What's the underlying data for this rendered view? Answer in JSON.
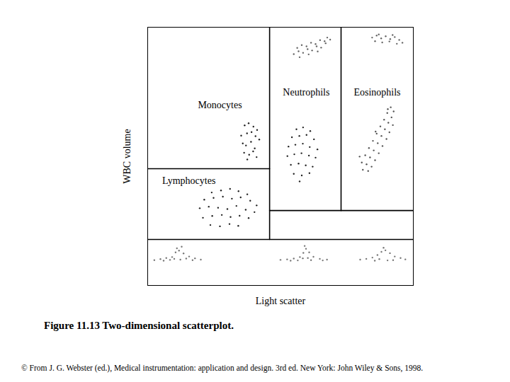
{
  "chart_data": {
    "type": "scatter",
    "title": "Figure 11.13 Two-dimensional scatterplot.",
    "caption": "© From J. G. Webster (ed.), Medical instrumentation: application and design. 3rd ed. New York: John Wiley & Sons, 1998.",
    "x_label": "Light scatter",
    "y_label": "WBC volume",
    "xlim": [
      0,
      100
    ],
    "ylim": [
      0,
      100
    ],
    "xticks": [],
    "yticks": [],
    "tick_labels": false,
    "grid": false,
    "marker": "dot",
    "series": [
      {
        "color": "#222222",
        "x": [
          36.5,
          38.0,
          39.8,
          41.2,
          35.2,
          37.4,
          39.1,
          40.6,
          42.0,
          35.8,
          37.0,
          38.9,
          40.3,
          36.3,
          38.2,
          39.7,
          37.5,
          41.0
        ],
        "values": [
          62.0,
          62.8,
          61.5,
          60.2,
          58.0,
          58.9,
          59.4,
          57.8,
          56.5,
          55.0,
          54.2,
          55.6,
          53.1,
          51.4,
          50.6,
          51.9,
          48.8,
          49.7
        ]
      },
      {
        "color": "#222222",
        "x": [
          56.0,
          58.5,
          61.2,
          54.3,
          57.1,
          59.8,
          62.6,
          53.0,
          55.6,
          58.4,
          61.0,
          63.9,
          52.6,
          55.2,
          57.9,
          60.7,
          63.2,
          53.9,
          56.8,
          59.5,
          62.1,
          55.0,
          58.0,
          60.9,
          57.2
        ],
        "values": [
          60.5,
          61.2,
          59.8,
          57.4,
          57.9,
          58.3,
          56.6,
          53.8,
          54.5,
          54.9,
          53.6,
          52.7,
          50.1,
          50.8,
          51.2,
          50.3,
          49.5,
          46.7,
          47.2,
          46.5,
          46.0,
          43.2,
          42.6,
          43.5,
          40.3
        ]
      },
      {
        "color": "#222222",
        "x": [
          24.1,
          27.6,
          31.0,
          34.2,
          37.5,
          21.3,
          24.8,
          28.3,
          31.7,
          35.0,
          38.6,
          41.0,
          19.6,
          23.0,
          26.5,
          30.0,
          33.4,
          36.9,
          40.2,
          20.8,
          24.3,
          27.9,
          31.2,
          34.6,
          38.0,
          23.6,
          27.2,
          30.8,
          34.1
        ],
        "values": [
          36.0,
          36.8,
          37.4,
          36.5,
          35.3,
          33.2,
          33.9,
          34.4,
          33.6,
          34.1,
          32.8,
          31.0,
          29.9,
          30.5,
          30.1,
          29.6,
          30.8,
          29.3,
          28.4,
          26.2,
          26.9,
          27.3,
          26.5,
          27.0,
          26.1,
          23.4,
          22.9,
          23.8,
          23.1
        ]
      },
      {
        "color": "#555555",
        "x": [
          91.5,
          92.6,
          90.2,
          91.8,
          89.0,
          90.6,
          92.3,
          87.6,
          89.3,
          91.0,
          86.2,
          88.0,
          89.9,
          84.8,
          86.6,
          88.4,
          83.3,
          85.1,
          87.0,
          81.9,
          83.7,
          85.6,
          80.6,
          82.4,
          84.3,
          81.0,
          83.0,
          79.8,
          85.8,
          90.4
        ],
        "values": [
          69.0,
          67.4,
          66.8,
          65.1,
          64.2,
          63.0,
          62.1,
          61.6,
          60.5,
          59.3,
          58.8,
          57.9,
          56.7,
          56.0,
          55.1,
          54.0,
          53.2,
          52.3,
          51.2,
          50.4,
          49.6,
          48.5,
          47.6,
          46.9,
          46.0,
          44.8,
          44.3,
          49.9,
          59.6,
          68.3
        ]
      },
      {
        "color": "#666666",
        "x": [
          55.0,
          56.8,
          58.5,
          60.2,
          61.9,
          63.6,
          65.3,
          67.0,
          68.7,
          56.3,
          58.0,
          59.8,
          61.5,
          63.2,
          64.9,
          66.6,
          57.2,
          60.6,
          64.0,
          67.6
        ],
        "values": [
          89.6,
          90.7,
          90.1,
          91.5,
          91.0,
          92.6,
          92.1,
          93.8,
          95.2,
          92.0,
          93.1,
          92.6,
          94.0,
          93.5,
          95.0,
          94.6,
          88.4,
          89.5,
          90.6,
          96.0
        ]
      },
      {
        "color": "#666666",
        "x": [
          84.5,
          86.2,
          87.9,
          89.6,
          91.3,
          93.0,
          94.7,
          85.6,
          88.3,
          91.0,
          93.8,
          95.9,
          87.0,
          92.2
        ],
        "values": [
          96.0,
          96.8,
          95.7,
          96.5,
          95.4,
          96.2,
          95.1,
          94.6,
          94.1,
          94.5,
          93.6,
          94.0,
          97.2,
          97.0
        ]
      },
      {
        "color": "#777777",
        "x": [
          2.5,
          4.8,
          7.0,
          9.2,
          10.5,
          11.8,
          13.5,
          15.6,
          17.8,
          20.0,
          6.0,
          8.4,
          10.0,
          12.3,
          14.5,
          16.9,
          11.0,
          12.8
        ],
        "values": [
          9.8,
          10.2,
          10.6,
          11.0,
          12.8,
          13.5,
          12.4,
          11.2,
          10.5,
          10.0,
          9.6,
          9.9,
          10.3,
          10.0,
          10.4,
          9.8,
          14.4,
          15.0
        ]
      },
      {
        "color": "#777777",
        "x": [
          50.0,
          52.5,
          55.0,
          57.3,
          58.6,
          59.6,
          60.8,
          62.4,
          64.8,
          67.5,
          56.5,
          61.5,
          59.1,
          58.4,
          60.3,
          53.8,
          65.9
        ],
        "values": [
          9.9,
          10.1,
          10.4,
          11.0,
          12.6,
          14.2,
          12.8,
          11.1,
          10.3,
          10.0,
          9.7,
          9.8,
          15.3,
          10.5,
          10.6,
          9.6,
          9.7
        ]
      },
      {
        "color": "#777777",
        "x": [
          80.0,
          82.3,
          84.6,
          86.5,
          88.0,
          89.5,
          91.2,
          93.0,
          95.2,
          97.0,
          85.5,
          90.3,
          88.8,
          87.2,
          92.4
        ],
        "values": [
          10.0,
          10.3,
          10.8,
          11.8,
          13.0,
          13.6,
          12.5,
          11.2,
          10.6,
          10.1,
          9.6,
          9.7,
          14.6,
          10.2,
          9.8
        ]
      }
    ],
    "boundaries": [
      {
        "x": [
          45.9,
          45.9
        ],
        "y": [
          100,
          17.8
        ]
      },
      {
        "x": [
          72.8,
          72.8
        ],
        "y": [
          100,
          29.0
        ]
      },
      {
        "x": [
          45.9,
          100
        ],
        "y": [
          29.0,
          29.0
        ]
      },
      {
        "x": [
          0,
          45.9
        ],
        "y": [
          45.2,
          45.2
        ]
      },
      {
        "x": [
          0,
          100
        ],
        "y": [
          17.8,
          17.8
        ]
      }
    ],
    "annotations": [
      {
        "text": "Monocytes",
        "x": 27.2,
        "y": 69.9
      },
      {
        "text": "Neutrophils",
        "x": 59.7,
        "y": 74.8
      },
      {
        "text": "Eosinophils",
        "x": 86.4,
        "y": 74.8
      },
      {
        "text": "Lymphocytes",
        "x": 15.5,
        "y": 40.5
      }
    ]
  }
}
